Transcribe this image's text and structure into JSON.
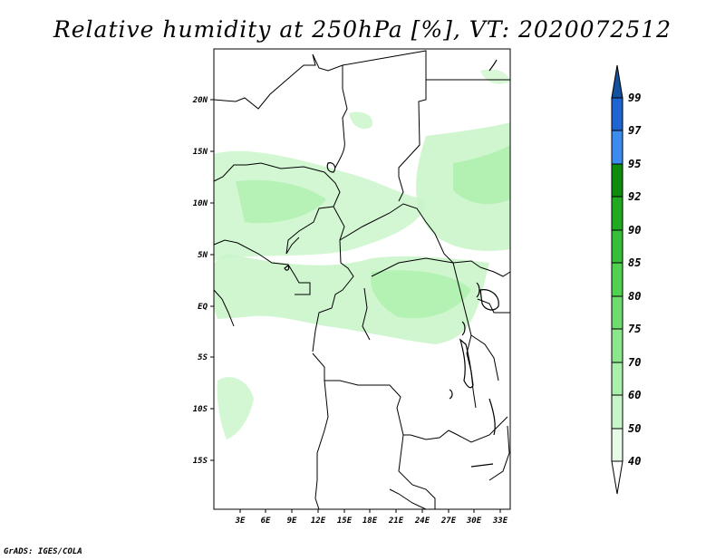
{
  "title": "Relative humidity at 250hPa [%], VT: 2020072512",
  "credit": "GrADS: IGES/COLA",
  "map": {
    "variable": "Relative humidity",
    "level": "250hPa",
    "units": "%",
    "valid_time": "2020072512",
    "lon_range": [
      0.5,
      34.5
    ],
    "lat_range": [
      -19.5,
      24.5
    ],
    "x_ticks": [
      "3E",
      "6E",
      "9E",
      "12E",
      "15E",
      "18E",
      "21E",
      "24E",
      "27E",
      "30E",
      "33E"
    ],
    "x_tick_values": [
      3,
      6,
      9,
      12,
      15,
      18,
      21,
      24,
      27,
      30,
      33
    ],
    "y_ticks": [
      "20N",
      "15N",
      "10N",
      "5N",
      "EQ",
      "5S",
      "10S",
      "15S"
    ],
    "y_tick_values": [
      20,
      15,
      10,
      5,
      0,
      -5,
      -10,
      -15
    ]
  },
  "colorbar": {
    "labels": [
      "99",
      "97",
      "95",
      "92",
      "90",
      "85",
      "80",
      "75",
      "70",
      "60",
      "50",
      "40"
    ],
    "colors": [
      "#1e64d2",
      "#3c8cf0",
      "#0e8c0e",
      "#1faa1f",
      "#37be37",
      "#50d250",
      "#6edc6e",
      "#8ce68c",
      "#aaf0aa",
      "#c8f5c8",
      "#e6fae6",
      "#ffffff"
    ],
    "top_arrow_color": "#1450a0",
    "bottom_arrow_color": "#ffffff"
  }
}
